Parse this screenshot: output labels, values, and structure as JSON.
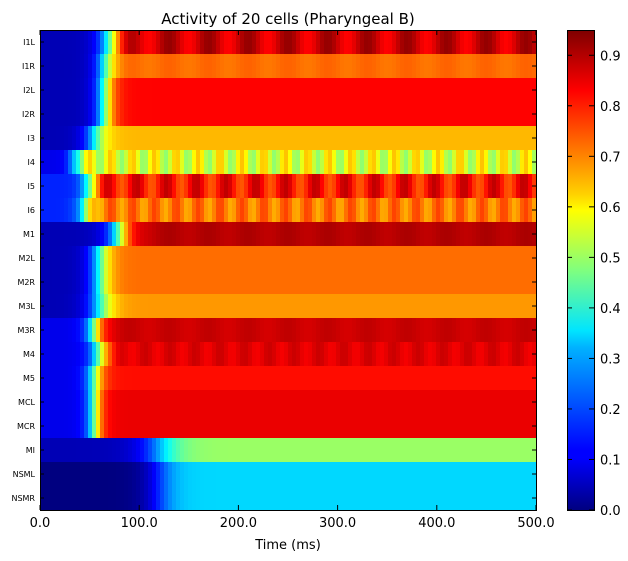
{
  "chart_data": {
    "type": "heatmap",
    "title": "Activity of 20 cells (Pharyngeal B)",
    "xlabel": "Time (ms)",
    "ylabel": "",
    "xlim": [
      0,
      500
    ],
    "x_ticks": [
      "0.0",
      "100.0",
      "200.0",
      "300.0",
      "400.0",
      "500.0"
    ],
    "colorbar": {
      "colormap": "jet",
      "range": [
        0,
        0.95
      ],
      "ticks": [
        "0.0",
        "0.1",
        "0.2",
        "0.3",
        "0.4",
        "0.5",
        "0.6",
        "0.7",
        "0.8",
        "0.9"
      ]
    },
    "grid": false,
    "rows": [
      {
        "label": "I1L",
        "start": 0.05,
        "end": 0.88,
        "rise_mid": 70,
        "rise_w": 25,
        "osc": 0.05,
        "osc_period": 40
      },
      {
        "label": "I1R",
        "start": 0.05,
        "end": 0.73,
        "rise_mid": 65,
        "rise_w": 22,
        "osc": 0.01,
        "osc_period": 40
      },
      {
        "label": "I2L",
        "start": 0.05,
        "end": 0.83,
        "rise_mid": 65,
        "rise_w": 22,
        "osc": 0.0,
        "osc_period": 40
      },
      {
        "label": "I2R",
        "start": 0.05,
        "end": 0.83,
        "rise_mid": 65,
        "rise_w": 22,
        "osc": 0.0,
        "osc_period": 40
      },
      {
        "label": "I3",
        "start": 0.05,
        "end": 0.66,
        "rise_mid": 55,
        "rise_w": 25,
        "osc": 0.0,
        "osc_period": 40
      },
      {
        "label": "I4",
        "start": 0.1,
        "end": 0.57,
        "rise_mid": 35,
        "rise_w": 15,
        "osc": 0.08,
        "osc_period": 22
      },
      {
        "label": "I5",
        "start": 0.15,
        "end": 0.82,
        "rise_mid": 50,
        "rise_w": 18,
        "osc": 0.07,
        "osc_period": 30
      },
      {
        "label": "I6",
        "start": 0.15,
        "end": 0.72,
        "rise_mid": 45,
        "rise_w": 18,
        "osc": 0.05,
        "osc_period": 22
      },
      {
        "label": "M1",
        "start": 0.05,
        "end": 0.9,
        "rise_mid": 80,
        "rise_w": 28,
        "osc": 0.01,
        "osc_period": 40
      },
      {
        "label": "M2L",
        "start": 0.05,
        "end": 0.73,
        "rise_mid": 60,
        "rise_w": 25,
        "osc": 0.0,
        "osc_period": 40
      },
      {
        "label": "M2R",
        "start": 0.05,
        "end": 0.73,
        "rise_mid": 60,
        "rise_w": 25,
        "osc": 0.0,
        "osc_period": 40
      },
      {
        "label": "M3L",
        "start": 0.05,
        "end": 0.69,
        "rise_mid": 60,
        "rise_w": 28,
        "osc": 0.0,
        "osc_period": 40
      },
      {
        "label": "M3R",
        "start": 0.1,
        "end": 0.88,
        "rise_mid": 55,
        "rise_w": 20,
        "osc": 0.01,
        "osc_period": 40
      },
      {
        "label": "M4",
        "start": 0.1,
        "end": 0.86,
        "rise_mid": 60,
        "rise_w": 22,
        "osc": 0.02,
        "osc_period": 25
      },
      {
        "label": "M5",
        "start": 0.1,
        "end": 0.82,
        "rise_mid": 55,
        "rise_w": 20,
        "osc": 0.0,
        "osc_period": 40
      },
      {
        "label": "MCL",
        "start": 0.1,
        "end": 0.85,
        "rise_mid": 55,
        "rise_w": 18,
        "osc": 0.0,
        "osc_period": 40
      },
      {
        "label": "MCR",
        "start": 0.1,
        "end": 0.85,
        "rise_mid": 55,
        "rise_w": 18,
        "osc": 0.0,
        "osc_period": 40
      },
      {
        "label": "MI",
        "start": 0.05,
        "end": 0.5,
        "rise_mid": 120,
        "rise_w": 45,
        "osc": 0.0,
        "osc_period": 40
      },
      {
        "label": "NSML",
        "start": 0.0,
        "end": 0.32,
        "rise_mid": 120,
        "rise_w": 35,
        "osc": 0.0,
        "osc_period": 40
      },
      {
        "label": "NSMR",
        "start": 0.0,
        "end": 0.32,
        "rise_mid": 120,
        "rise_w": 35,
        "osc": 0.0,
        "osc_period": 40
      }
    ]
  }
}
